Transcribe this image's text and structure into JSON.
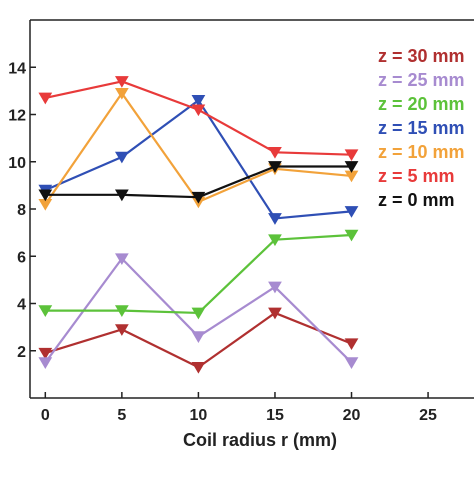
{
  "chart_data": {
    "type": "line",
    "xlabel": "Coil radius r (mm)",
    "ylabel": "",
    "title": "",
    "xlim": [
      -1,
      28
    ],
    "ylim": [
      0,
      16
    ],
    "xticks": [
      0,
      5,
      10,
      15,
      20,
      25
    ],
    "yticks": [
      2,
      4,
      6,
      8,
      10,
      12,
      14
    ],
    "x": [
      0,
      5,
      10,
      15,
      20
    ],
    "grid": false,
    "legend_placement": "right, partially clipped",
    "marker": "downward triangle",
    "series": [
      {
        "name": "z = 30 mm",
        "legend_label": "z = 30 mm",
        "color": "#b03030",
        "values": [
          1.9,
          2.9,
          1.3,
          3.6,
          2.3
        ]
      },
      {
        "name": "z = 25 mm",
        "legend_label": "z = 25 mm",
        "color": "#a78bd0",
        "values": [
          1.5,
          5.9,
          2.6,
          4.7,
          1.5
        ]
      },
      {
        "name": "z = 20 mm",
        "legend_label": "z = 20 mm",
        "color": "#5cc23a",
        "values": [
          3.7,
          3.7,
          3.6,
          6.7,
          6.9
        ]
      },
      {
        "name": "z = 15 mm",
        "legend_label": "z = 15 mm",
        "color": "#2f4fb5",
        "values": [
          8.8,
          10.2,
          12.6,
          7.6,
          7.9
        ]
      },
      {
        "name": "z = 10 mm",
        "legend_label": "z = 10 mm",
        "color": "#f2a23a",
        "values": [
          8.2,
          12.9,
          8.3,
          9.7,
          9.4
        ]
      },
      {
        "name": "z = 5 mm",
        "legend_label": "z =   5 mm",
        "color": "#e83a3a",
        "values": [
          12.7,
          13.4,
          12.2,
          10.4,
          10.3
        ]
      },
      {
        "name": "z = 0 mm",
        "legend_label": "z =   0 mm",
        "color": "#111111",
        "values": [
          8.6,
          8.6,
          8.5,
          9.8,
          9.8
        ]
      }
    ]
  }
}
